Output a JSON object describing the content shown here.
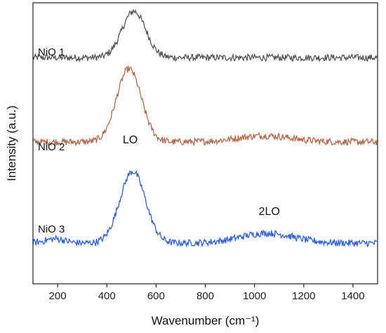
{
  "chart_data": {
    "type": "line",
    "title": "",
    "xlabel": "Wavenumber (cm⁻¹)",
    "ylabel": "Intensity (a.u.)",
    "xlim": [
      100,
      1500
    ],
    "xticks": [
      200,
      400,
      600,
      800,
      1000,
      1200,
      1400
    ],
    "tick_labels": [
      "200",
      "400",
      "600",
      "800",
      "1000",
      "1200",
      "1400"
    ],
    "ylim": [
      0,
      10
    ],
    "y_ticks_labeled": false,
    "grid": false,
    "legend": "none",
    "series": [
      {
        "name": "NiO 1",
        "color": "#555555",
        "baseline": 8.05,
        "noise": 0.12,
        "peaks": [
          {
            "center": 510,
            "height": 1.65,
            "width": 48
          }
        ]
      },
      {
        "name": "NiO 2",
        "color": "#b5694a",
        "baseline": 5.05,
        "noise": 0.12,
        "peaks": [
          {
            "center": 490,
            "height": 2.6,
            "width": 50
          },
          {
            "center": 1040,
            "height": 0.22,
            "width": 110
          }
        ]
      },
      {
        "name": "NiO 3",
        "color": "#2f5fd8",
        "baseline": 1.45,
        "noise": 0.12,
        "peaks": [
          {
            "center": 505,
            "height": 2.55,
            "width": 52
          },
          {
            "center": 190,
            "height": 0.15,
            "width": 40
          },
          {
            "center": 1050,
            "height": 0.35,
            "width": 110
          }
        ]
      }
    ],
    "annotations": [
      {
        "text": "LO",
        "x": 495,
        "y": 5.0
      },
      {
        "text": "2LO",
        "x": 1060,
        "y": 2.45
      }
    ]
  }
}
